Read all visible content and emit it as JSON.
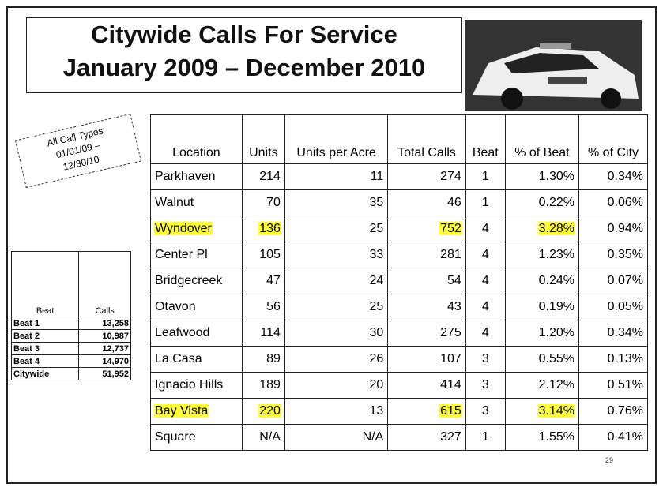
{
  "header": {
    "title": [
      "Citywide Calls For Service",
      "January 2009 – December 2010"
    ]
  },
  "note": [
    "All Call Types",
    "01/01/09 –",
    "12/30/10"
  ],
  "beat_table": {
    "columns": [
      "Beat",
      "Calls"
    ],
    "rows": [
      [
        "Beat 1",
        "13,258"
      ],
      [
        "Beat 2",
        "10,987"
      ],
      [
        "Beat 3",
        "12,737"
      ],
      [
        "Beat 4",
        "14,970"
      ],
      [
        "Citywide",
        "51,952"
      ]
    ]
  },
  "table": {
    "columns": [
      "Location",
      "Units",
      "Units per Acre",
      "Total Calls",
      "Beat",
      "% of Beat",
      "% of City"
    ],
    "rows": [
      [
        "Parkhaven",
        214,
        11,
        274,
        1,
        "1.30%",
        "0.34%"
      ],
      [
        "Walnut",
        70,
        35,
        46,
        1,
        "0.22%",
        "0.06%"
      ],
      [
        "Wyndover",
        136,
        25,
        752,
        4,
        "3.28%",
        "0.94%"
      ],
      [
        "Center Pl",
        105,
        33,
        281,
        4,
        "1.23%",
        "0.35%"
      ],
      [
        "Bridgecreek",
        47,
        24,
        54,
        4,
        "0.24%",
        "0.07%"
      ],
      [
        "Otavon",
        56,
        25,
        43,
        4,
        "0.19%",
        "0.05%"
      ],
      [
        "Leafwood",
        114,
        30,
        275,
        4,
        "1.20%",
        "0.34%"
      ],
      [
        "La Casa",
        89,
        26,
        107,
        3,
        "0.55%",
        "0.13%"
      ],
      [
        "Ignacio Hills",
        189,
        20,
        414,
        3,
        "2.12%",
        "0.51%"
      ],
      [
        "Bay Vista",
        220,
        13,
        615,
        3,
        "3.14%",
        "0.76%"
      ],
      [
        "Square",
        "N/A",
        "N/A",
        327,
        1,
        "1.55%",
        "0.41%"
      ]
    ],
    "highlight": {
      "color": "#ffff33",
      "cells": [
        [
          2,
          0
        ],
        [
          2,
          1
        ],
        [
          2,
          3
        ],
        [
          2,
          5
        ],
        [
          9,
          0
        ],
        [
          9,
          1
        ],
        [
          9,
          3
        ],
        [
          9,
          5
        ]
      ]
    }
  },
  "page_number": "29"
}
